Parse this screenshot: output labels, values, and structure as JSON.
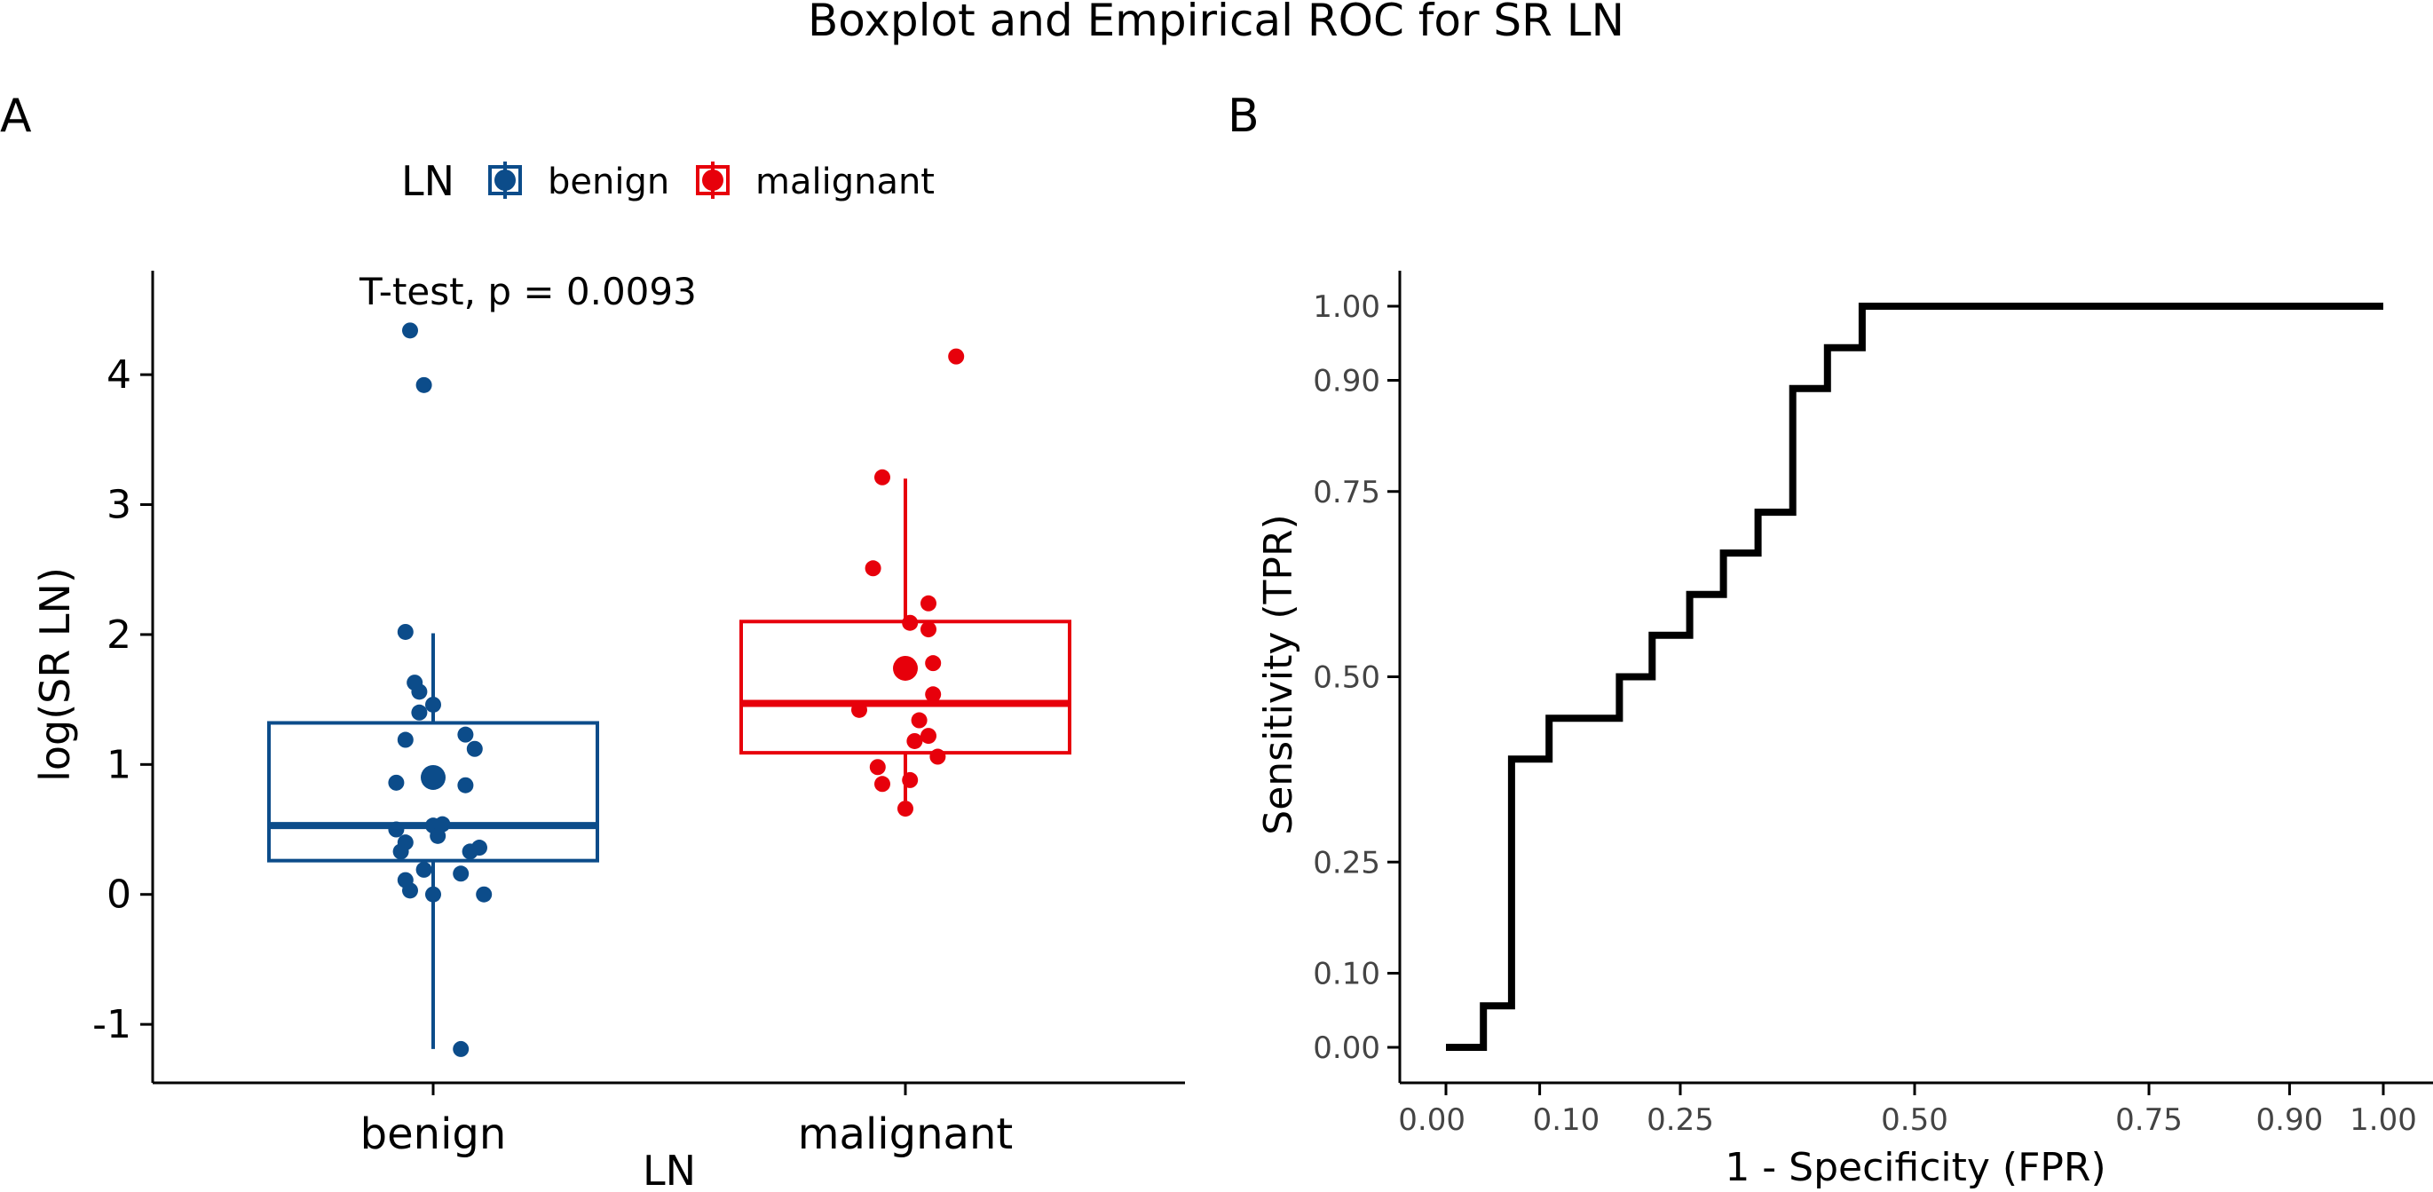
{
  "figure_title": "Boxplot and Empirical ROC for SR LN",
  "panel_a_label": "A",
  "panel_b_label": "B",
  "colors": {
    "benign": "#0C4C8A",
    "malignant": "#E7000B",
    "roc": "#000000"
  },
  "chart_data": [
    {
      "type": "box",
      "title": "",
      "annotation": "T-test, p = 0.0093",
      "xlabel": "LN",
      "ylabel": "log(SR LN)",
      "ylim": [
        -1.45,
        4.8
      ],
      "yticks": [
        -1,
        0,
        1,
        2,
        3,
        4
      ],
      "ytick_labels": [
        "-1",
        "0",
        "1",
        "2",
        "3",
        "4"
      ],
      "categories": [
        "benign",
        "malignant"
      ],
      "legend": {
        "title": "LN",
        "entries": [
          "benign",
          "malignant"
        ],
        "position": "top"
      },
      "boxes": [
        {
          "name": "benign",
          "q1": 0.26,
          "median": 0.53,
          "q3": 1.32,
          "whisker_low": -1.19,
          "whisker_high": 2.01,
          "mean": 0.9
        },
        {
          "name": "malignant",
          "q1": 1.09,
          "median": 1.47,
          "q3": 2.1,
          "whisker_low": 0.72,
          "whisker_high": 3.2,
          "mean": 1.74
        }
      ],
      "points": [
        {
          "group": "benign",
          "jitter": -0.05,
          "y": 4.34
        },
        {
          "group": "benign",
          "jitter": -0.02,
          "y": 3.92
        },
        {
          "group": "benign",
          "jitter": -0.06,
          "y": 2.02
        },
        {
          "group": "benign",
          "jitter": -0.04,
          "y": 1.63
        },
        {
          "group": "benign",
          "jitter": -0.03,
          "y": 1.56
        },
        {
          "group": "benign",
          "jitter": -0.03,
          "y": 1.4
        },
        {
          "group": "benign",
          "jitter": -0.0,
          "y": 1.46
        },
        {
          "group": "benign",
          "jitter": -0.06,
          "y": 1.19
        },
        {
          "group": "benign",
          "jitter": 0.07,
          "y": 1.23
        },
        {
          "group": "benign",
          "jitter": 0.09,
          "y": 1.12
        },
        {
          "group": "benign",
          "jitter": -0.08,
          "y": 0.86
        },
        {
          "group": "benign",
          "jitter": 0.07,
          "y": 0.84
        },
        {
          "group": "benign",
          "jitter": -0.08,
          "y": 0.5
        },
        {
          "group": "benign",
          "jitter": -0.0,
          "y": 0.53
        },
        {
          "group": "benign",
          "jitter": 0.02,
          "y": 0.54
        },
        {
          "group": "benign",
          "jitter": 0.01,
          "y": 0.45
        },
        {
          "group": "benign",
          "jitter": -0.06,
          "y": 0.4
        },
        {
          "group": "benign",
          "jitter": -0.07,
          "y": 0.33
        },
        {
          "group": "benign",
          "jitter": 0.08,
          "y": 0.33
        },
        {
          "group": "benign",
          "jitter": 0.1,
          "y": 0.36
        },
        {
          "group": "benign",
          "jitter": -0.02,
          "y": 0.19
        },
        {
          "group": "benign",
          "jitter": 0.06,
          "y": 0.16
        },
        {
          "group": "benign",
          "jitter": -0.06,
          "y": 0.11
        },
        {
          "group": "benign",
          "jitter": -0.05,
          "y": 0.03
        },
        {
          "group": "benign",
          "jitter": -0.0,
          "y": 0.0
        },
        {
          "group": "benign",
          "jitter": 0.11,
          "y": 0.0
        },
        {
          "group": "benign",
          "jitter": 0.06,
          "y": -1.19
        },
        {
          "group": "malignant",
          "jitter": 0.11,
          "y": 4.14
        },
        {
          "group": "malignant",
          "jitter": -0.05,
          "y": 3.21
        },
        {
          "group": "malignant",
          "jitter": -0.07,
          "y": 2.51
        },
        {
          "group": "malignant",
          "jitter": 0.05,
          "y": 2.24
        },
        {
          "group": "malignant",
          "jitter": 0.01,
          "y": 2.09
        },
        {
          "group": "malignant",
          "jitter": 0.05,
          "y": 2.04
        },
        {
          "group": "malignant",
          "jitter": 0.06,
          "y": 1.78
        },
        {
          "group": "malignant",
          "jitter": 0.06,
          "y": 1.54
        },
        {
          "group": "malignant",
          "jitter": -0.1,
          "y": 1.42
        },
        {
          "group": "malignant",
          "jitter": 0.03,
          "y": 1.34
        },
        {
          "group": "malignant",
          "jitter": 0.05,
          "y": 1.22
        },
        {
          "group": "malignant",
          "jitter": 0.02,
          "y": 1.18
        },
        {
          "group": "malignant",
          "jitter": 0.07,
          "y": 1.06
        },
        {
          "group": "malignant",
          "jitter": -0.06,
          "y": 0.98
        },
        {
          "group": "malignant",
          "jitter": 0.01,
          "y": 0.88
        },
        {
          "group": "malignant",
          "jitter": -0.05,
          "y": 0.85
        },
        {
          "group": "malignant",
          "jitter": -0.0,
          "y": 0.66
        }
      ]
    },
    {
      "type": "line",
      "title": "",
      "xlabel": "1 - Specificity (FPR)",
      "ylabel": "Sensitivity (TPR)",
      "xlim": [
        -0.05,
        1.05
      ],
      "ylim": [
        -0.05,
        1.05
      ],
      "xticks": [
        0.0,
        0.1,
        0.25,
        0.5,
        0.75,
        0.9,
        1.0
      ],
      "xtick_labels": [
        "0.00",
        "0.10",
        "0.25",
        "0.50",
        "0.75",
        "0.90",
        "1.00"
      ],
      "yticks": [
        0.0,
        0.1,
        0.25,
        0.5,
        0.75,
        0.9,
        1.0
      ],
      "ytick_labels": [
        "0.00",
        "0.10",
        "0.25",
        "0.50",
        "0.75",
        "0.90",
        "1.00"
      ],
      "series": [
        {
          "name": "ROC",
          "x": [
            0.0,
            0.04,
            0.04,
            0.07,
            0.07,
            0.11,
            0.11,
            0.185,
            0.185,
            0.22,
            0.22,
            0.26,
            0.26,
            0.296,
            0.296,
            0.333,
            0.333,
            0.37,
            0.37,
            0.407,
            0.407,
            0.444,
            0.444,
            1.0
          ],
          "y": [
            0.0,
            0.0,
            0.056,
            0.056,
            0.389,
            0.389,
            0.444,
            0.444,
            0.5,
            0.5,
            0.556,
            0.556,
            0.611,
            0.611,
            0.667,
            0.667,
            0.722,
            0.722,
            0.889,
            0.889,
            0.944,
            0.944,
            1.0,
            1.0
          ]
        }
      ]
    }
  ]
}
